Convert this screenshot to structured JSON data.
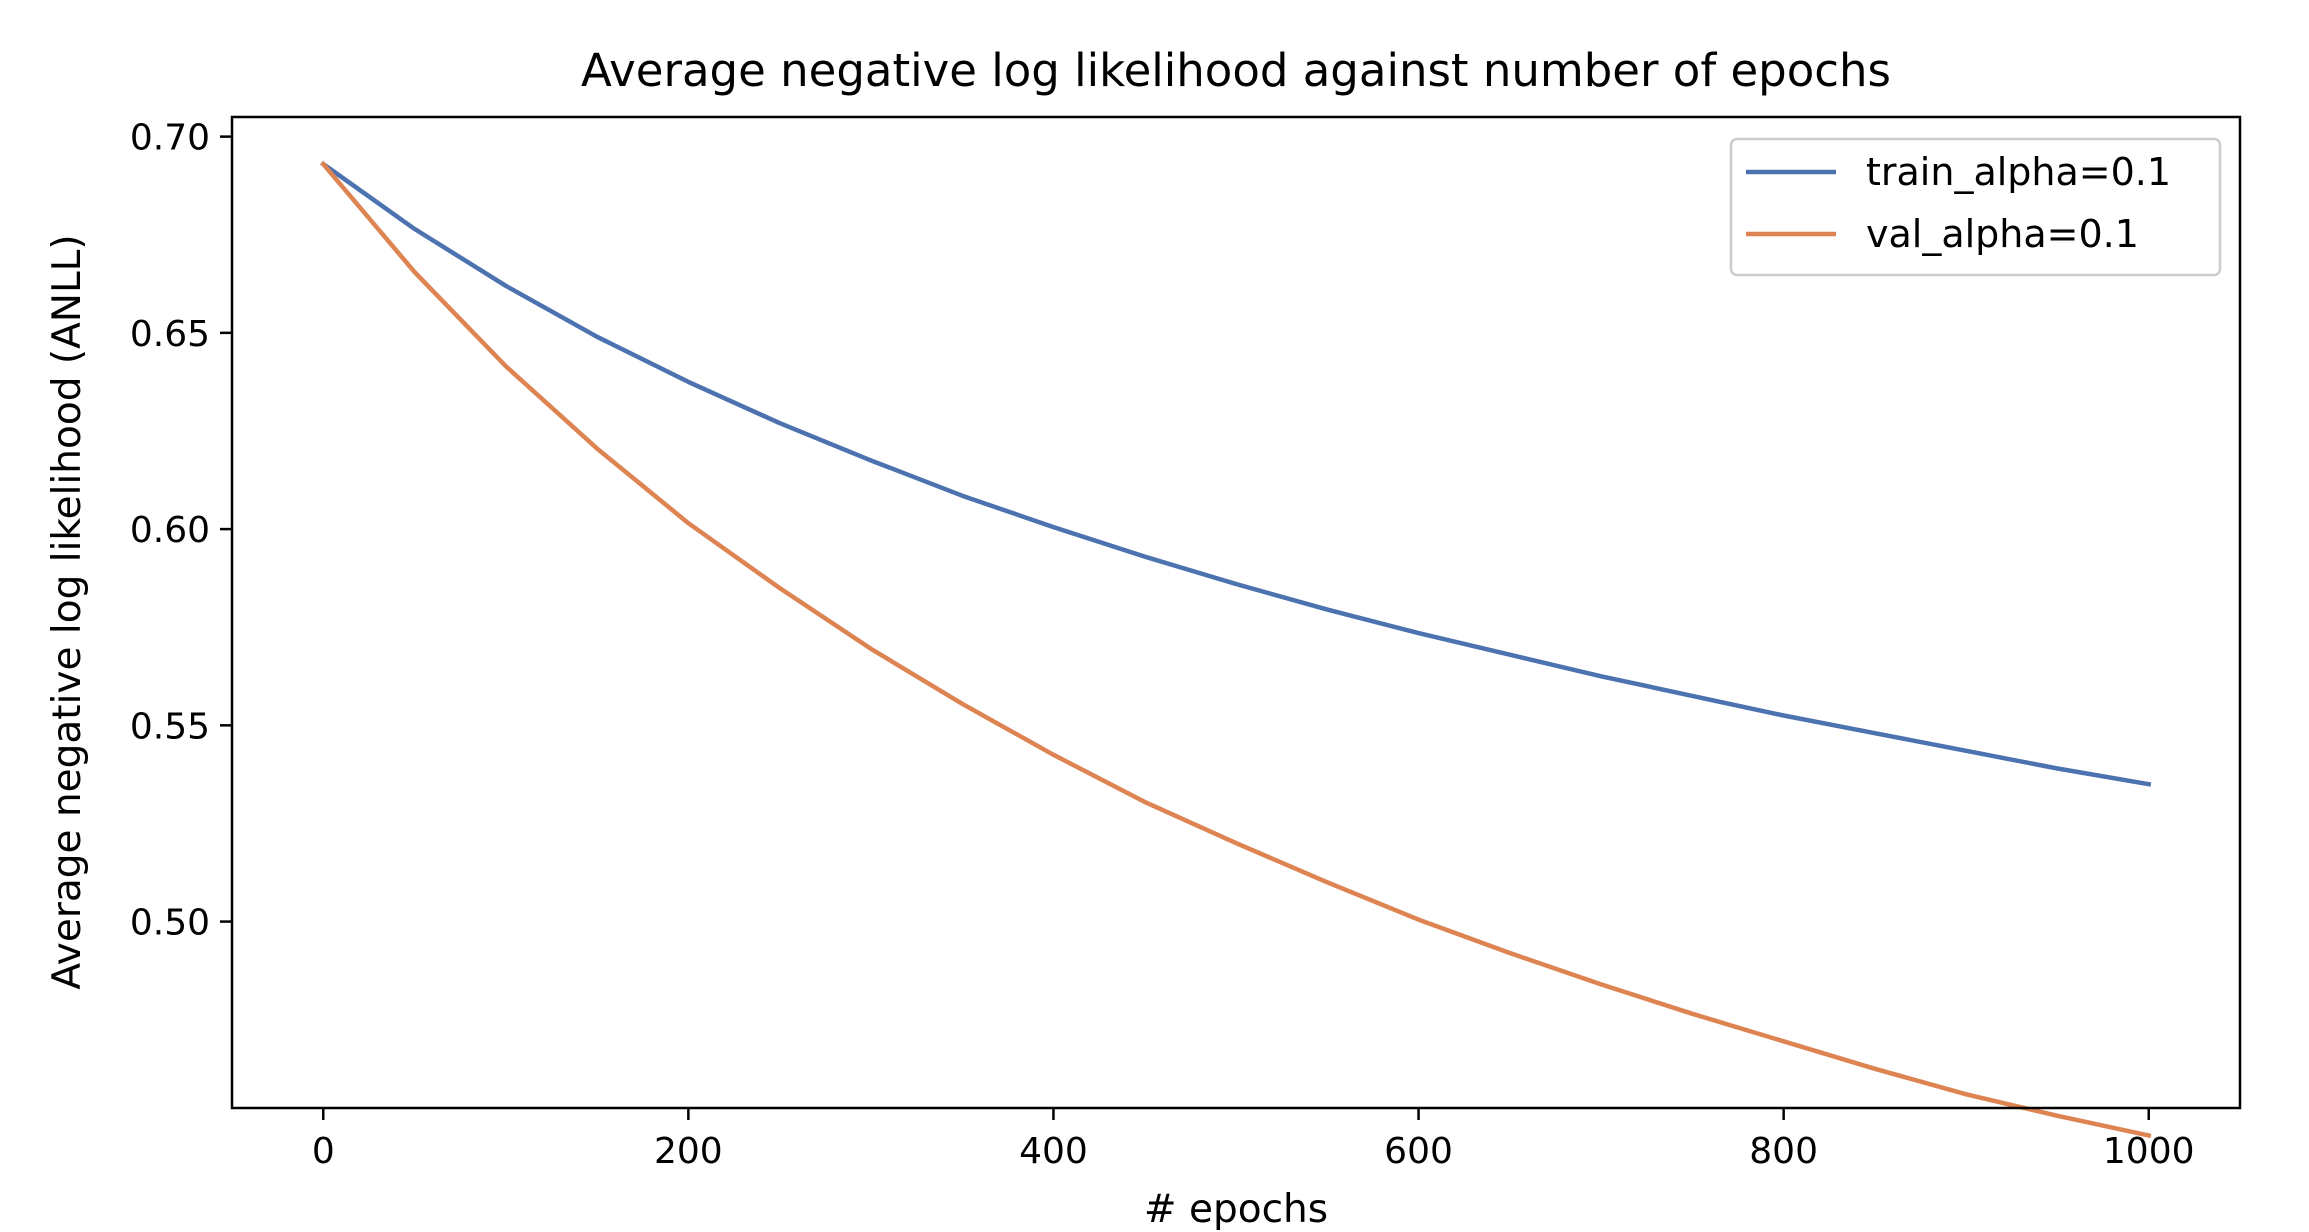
{
  "chart_data": {
    "type": "line",
    "title": "Average negative log likelihood against number of epochs",
    "xlabel": "# epochs",
    "ylabel": "Average negative log likelihood (ANLL)",
    "xlim": [
      -50,
      1050
    ],
    "ylim": [
      0.4525,
      0.705
    ],
    "x_ticks": [
      0,
      200,
      400,
      600,
      800,
      1000
    ],
    "x_tick_labels": [
      "0",
      "200",
      "400",
      "600",
      "800",
      "1000"
    ],
    "y_ticks": [
      0.5,
      0.55,
      0.6,
      0.65,
      0.7
    ],
    "y_tick_labels": [
      "0.50",
      "0.55",
      "0.60",
      "0.65",
      "0.70"
    ],
    "grid": false,
    "legend_position": "top-right",
    "series": [
      {
        "name": "train_alpha=0.1",
        "color": "#4c72b0",
        "x": [
          0,
          50,
          100,
          150,
          200,
          250,
          300,
          350,
          400,
          450,
          500,
          550,
          600,
          650,
          700,
          750,
          800,
          850,
          900,
          950,
          1000
        ],
        "y": [
          0.693,
          0.6765,
          0.662,
          0.649,
          0.6375,
          0.627,
          0.6175,
          0.6085,
          0.6005,
          0.593,
          0.586,
          0.5795,
          0.5735,
          0.568,
          0.5625,
          0.5575,
          0.5525,
          0.548,
          0.5435,
          0.539,
          0.535
        ]
      },
      {
        "name": "val_alpha=0.1",
        "color": "#dd8452",
        "x": [
          0,
          50,
          100,
          150,
          200,
          250,
          300,
          350,
          400,
          450,
          500,
          550,
          600,
          650,
          700,
          750,
          800,
          850,
          900,
          950,
          1000
        ],
        "y": [
          0.693,
          0.6655,
          0.6415,
          0.6205,
          0.6015,
          0.585,
          0.5695,
          0.5555,
          0.5425,
          0.5305,
          0.52,
          0.51,
          0.5005,
          0.492,
          0.484,
          0.4765,
          0.4695,
          0.4625,
          0.456,
          0.4505,
          0.4455
        ]
      }
    ]
  }
}
